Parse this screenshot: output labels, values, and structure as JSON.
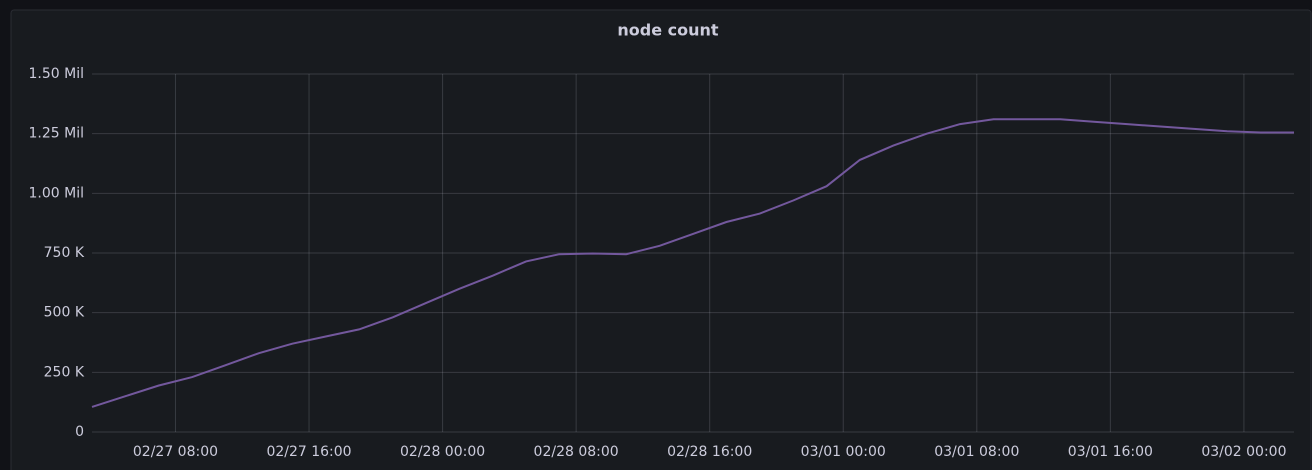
{
  "chart_data": {
    "type": "line",
    "title": "node count",
    "x": [
      "02/27 03:00",
      "02/27 05:00",
      "02/27 07:00",
      "02/27 09:00",
      "02/27 11:00",
      "02/27 13:00",
      "02/27 15:00",
      "02/27 17:00",
      "02/27 19:00",
      "02/27 21:00",
      "02/27 23:00",
      "02/28 01:00",
      "02/28 03:00",
      "02/28 05:00",
      "02/28 07:00",
      "02/28 09:00",
      "02/28 11:00",
      "02/28 13:00",
      "02/28 15:00",
      "02/28 17:00",
      "02/28 19:00",
      "02/28 21:00",
      "02/28 23:00",
      "03/01 01:00",
      "03/01 03:00",
      "03/01 05:00",
      "03/01 07:00",
      "03/01 09:00",
      "03/01 11:00",
      "03/01 13:00",
      "03/01 15:00",
      "03/01 17:00",
      "03/01 19:00",
      "03/01 21:00",
      "03/01 23:00",
      "03/02 01:00",
      "03/02 03:00"
    ],
    "series": [
      {
        "color": "#73589d",
        "values": [
          105000,
          150000,
          195000,
          230000,
          280000,
          330000,
          370000,
          400000,
          430000,
          480000,
          540000,
          600000,
          655000,
          715000,
          745000,
          748000,
          745000,
          780000,
          830000,
          880000,
          915000,
          970000,
          1030000,
          1140000,
          1200000,
          1250000,
          1290000,
          1310000,
          1310000,
          1310000,
          1300000,
          1290000,
          1280000,
          1270000,
          1260000,
          1255000,
          1255000
        ]
      }
    ],
    "xlim": [
      "02/27 03:00",
      "03/02 03:00"
    ],
    "xticks": [
      "02/27 08:00",
      "02/27 16:00",
      "02/28 00:00",
      "02/28 08:00",
      "02/28 16:00",
      "03/01 00:00",
      "03/01 08:00",
      "03/01 16:00",
      "03/02 00:00"
    ],
    "ylim": [
      0,
      1500000
    ],
    "yticks": [
      0,
      {
        "value": 250000,
        "label": "250 K"
      },
      {
        "value": 500000,
        "label": "500 K"
      },
      {
        "value": 750000,
        "label": "750 K"
      },
      {
        "value": 1000000,
        "label": "1.00 Mil"
      },
      {
        "value": 1250000,
        "label": "1.25 Mil"
      },
      {
        "value": 1500000,
        "label": "1.50 Mil"
      }
    ],
    "grid": true
  }
}
